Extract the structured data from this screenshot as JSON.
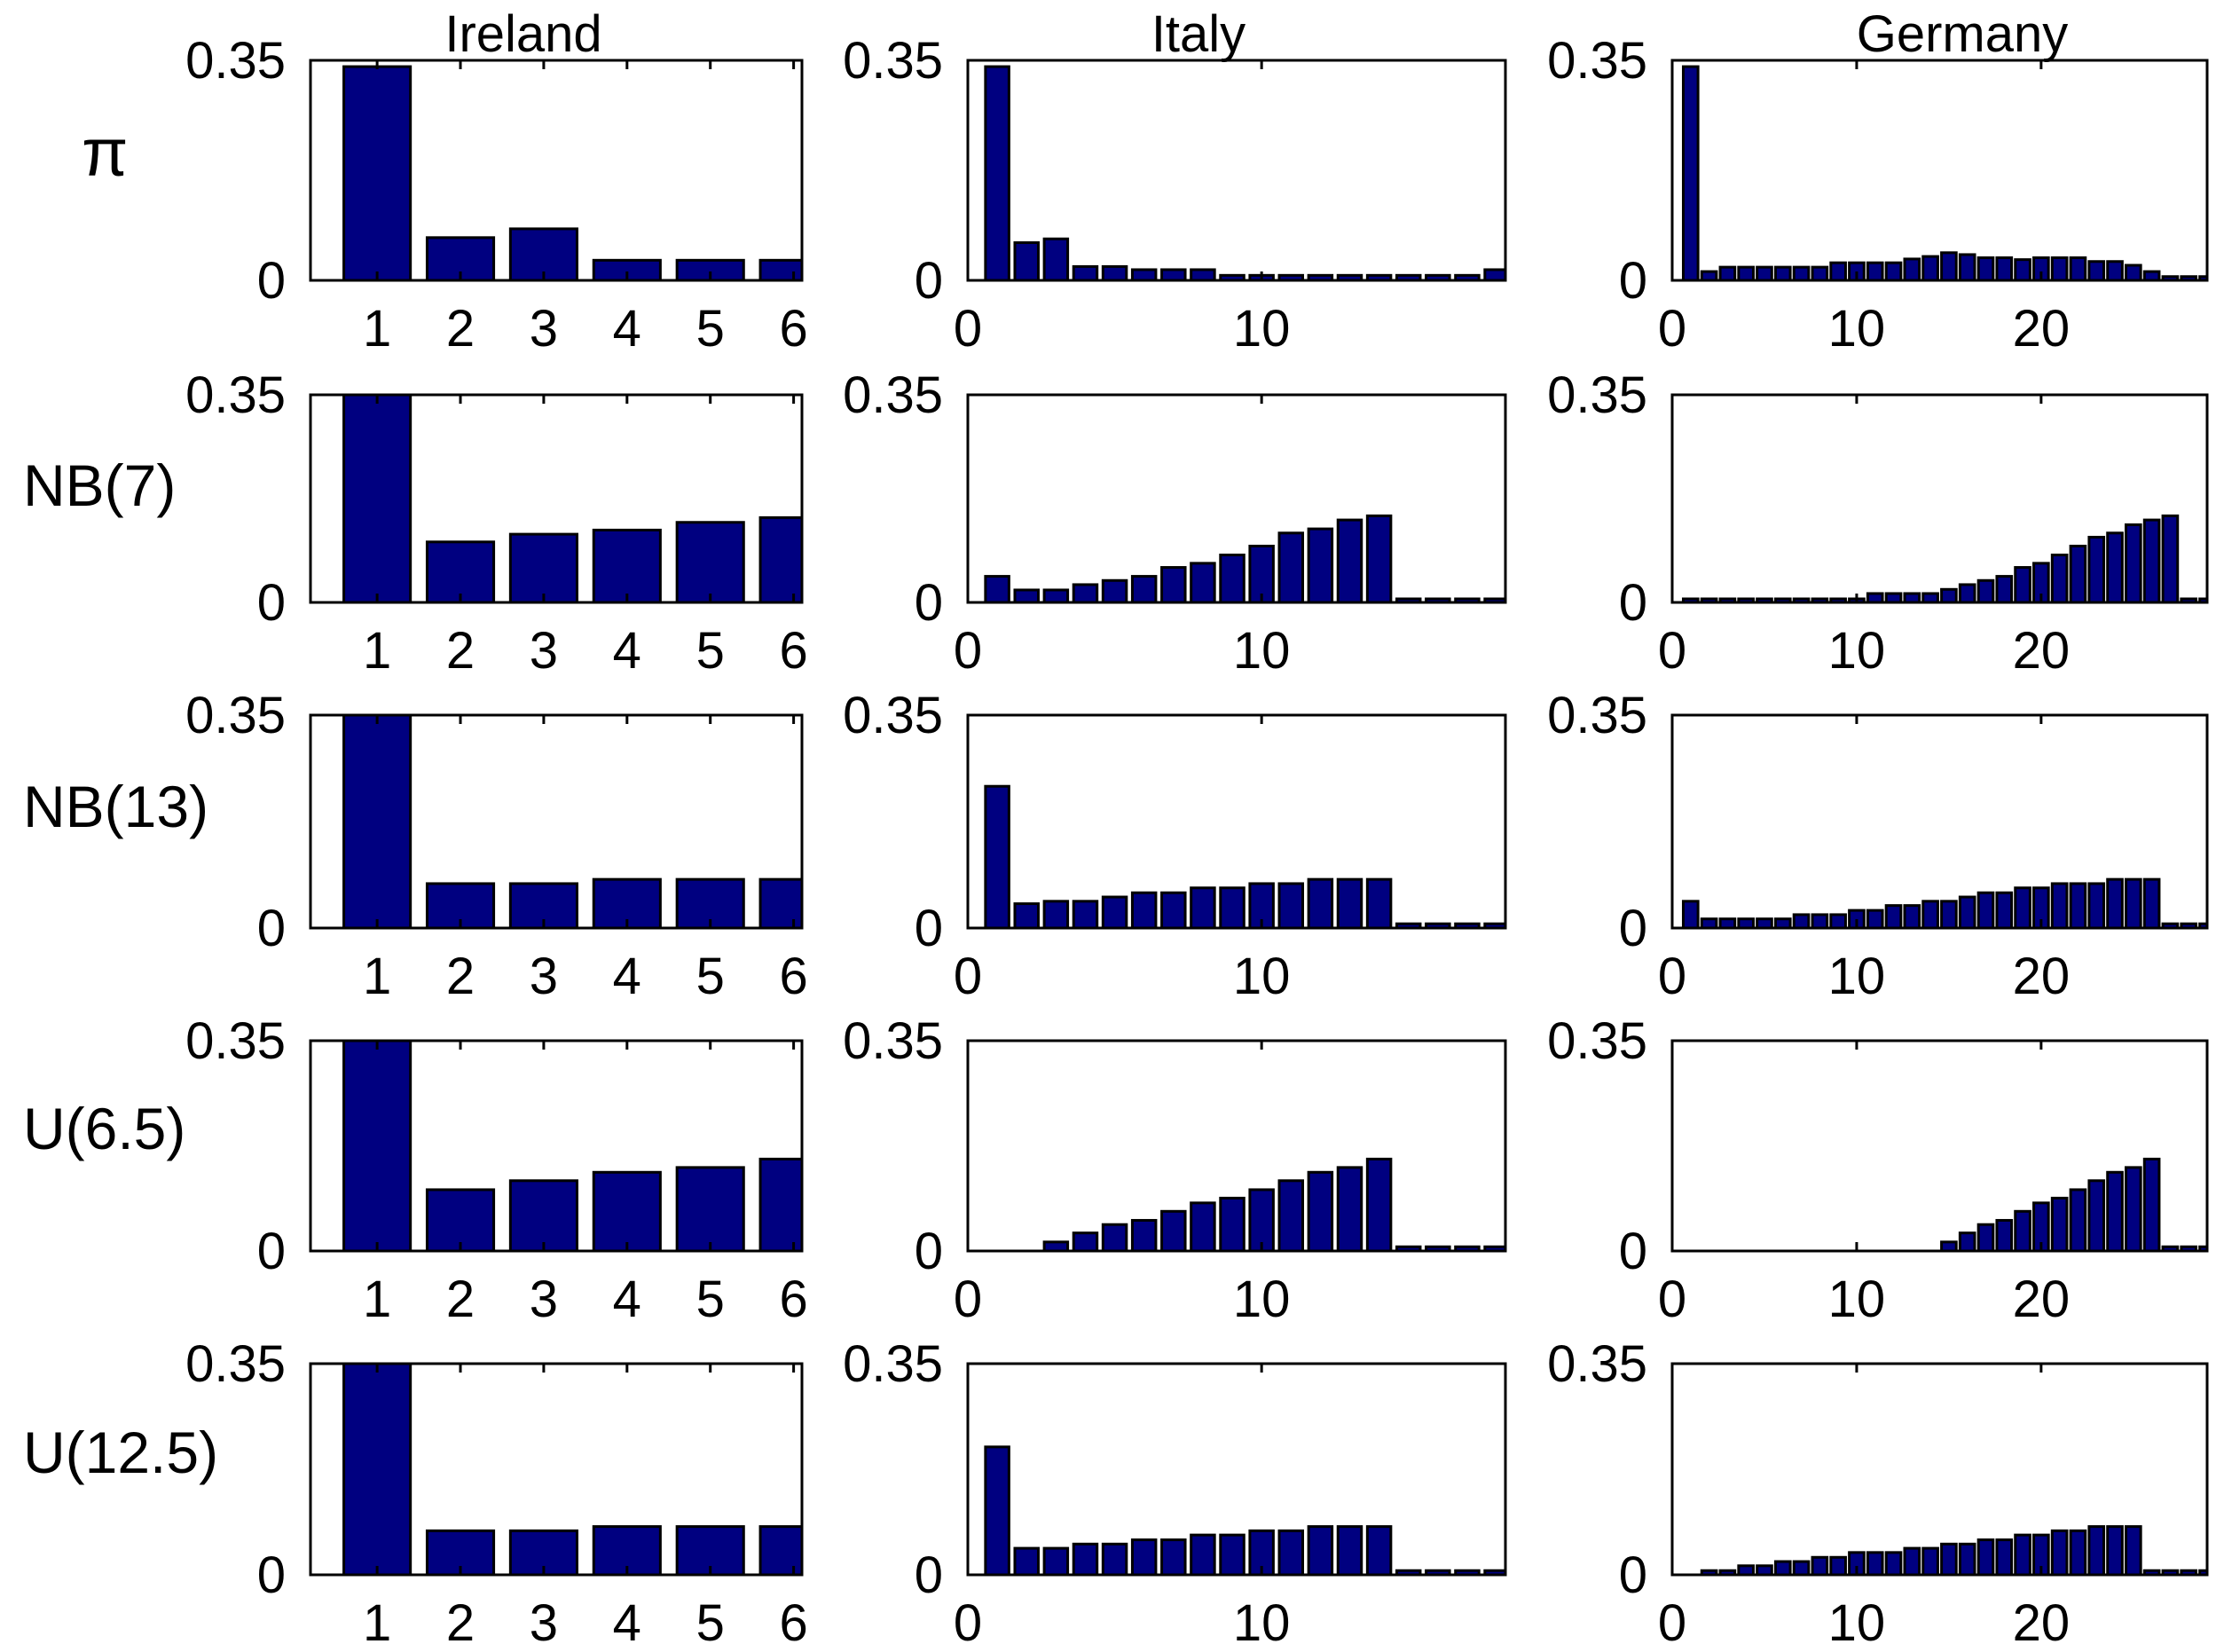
{
  "colors": {
    "bar_fill": "#000080",
    "bar_edge": "#000000",
    "axes": "#000000",
    "background": "#ffffff"
  },
  "column_titles": [
    "Ireland",
    "Italy",
    "Germany"
  ],
  "row_labels": [
    "π",
    "NB(7)",
    "NB(13)",
    "U(6.5)",
    "U(12.5)"
  ],
  "y_tick_labels": [
    "0",
    "0.35"
  ],
  "chart_data": [
    {
      "type": "bar",
      "panel": "pi-ireland",
      "row_label": "π",
      "column_title": "Ireland",
      "x": [
        1,
        2,
        3,
        4,
        5,
        6
      ],
      "values": [
        0.34,
        0.068,
        0.082,
        0.032,
        0.032,
        0.032
      ],
      "xlim": [
        0.2,
        6.1
      ],
      "ylim": [
        0,
        0.35
      ],
      "xticks": [
        1,
        2,
        3,
        4,
        5,
        6
      ],
      "yticks": [
        0,
        0.35
      ]
    },
    {
      "type": "bar",
      "panel": "pi-italy",
      "row_label": "π",
      "column_title": "Italy",
      "x": [
        1,
        2,
        3,
        4,
        5,
        6,
        7,
        8,
        9,
        10,
        11,
        12,
        13,
        14,
        15,
        16,
        17,
        18
      ],
      "values": [
        0.34,
        0.06,
        0.066,
        0.022,
        0.022,
        0.017,
        0.017,
        0.017,
        0.008,
        0.008,
        0.008,
        0.008,
        0.008,
        0.008,
        0.008,
        0.008,
        0.008,
        0.017
      ],
      "xlim": [
        0,
        18.3
      ],
      "ylim": [
        0,
        0.35
      ],
      "xticks": [
        0,
        10
      ],
      "yticks": [
        0,
        0.35
      ]
    },
    {
      "type": "bar",
      "panel": "pi-germany",
      "row_label": "π",
      "column_title": "Germany",
      "x": [
        1,
        2,
        3,
        4,
        5,
        6,
        7,
        8,
        9,
        10,
        11,
        12,
        13,
        14,
        15,
        16,
        17,
        18,
        19,
        20,
        21,
        22,
        23,
        24,
        25,
        26,
        27,
        28,
        29
      ],
      "values": [
        0.34,
        0.014,
        0.021,
        0.021,
        0.021,
        0.021,
        0.021,
        0.021,
        0.028,
        0.028,
        0.028,
        0.028,
        0.034,
        0.038,
        0.044,
        0.041,
        0.036,
        0.036,
        0.033,
        0.036,
        0.036,
        0.036,
        0.03,
        0.03,
        0.024,
        0.014,
        0.006,
        0.006,
        0.006
      ],
      "xlim": [
        0,
        29
      ],
      "ylim": [
        0,
        0.35
      ],
      "xticks": [
        0,
        10,
        20
      ],
      "yticks": [
        0,
        0.35
      ]
    },
    {
      "type": "bar",
      "panel": "nb7-ireland",
      "row_label": "NB(7)",
      "column_title": "Ireland",
      "x": [
        1,
        2,
        3,
        4,
        5,
        6
      ],
      "values": [
        0.35,
        0.102,
        0.115,
        0.122,
        0.135,
        0.143
      ],
      "xlim": [
        0.2,
        6.1
      ],
      "ylim": [
        0,
        0.35
      ],
      "xticks": [
        1,
        2,
        3,
        4,
        5,
        6
      ],
      "yticks": [
        0,
        0.35
      ]
    },
    {
      "type": "bar",
      "panel": "nb7-italy",
      "row_label": "NB(7)",
      "column_title": "Italy",
      "x": [
        1,
        2,
        3,
        4,
        5,
        6,
        7,
        8,
        9,
        10,
        11,
        12,
        13,
        14,
        15,
        16,
        17,
        18
      ],
      "values": [
        0.044,
        0.021,
        0.021,
        0.03,
        0.037,
        0.044,
        0.059,
        0.066,
        0.08,
        0.095,
        0.117,
        0.124,
        0.139,
        0.146,
        0.006,
        0.006,
        0.006,
        0.006
      ],
      "xlim": [
        0,
        18.3
      ],
      "ylim": [
        0,
        0.35
      ],
      "xticks": [
        0,
        10
      ],
      "yticks": [
        0,
        0.35
      ]
    },
    {
      "type": "bar",
      "panel": "nb7-germany",
      "row_label": "NB(7)",
      "column_title": "Germany",
      "x": [
        1,
        2,
        3,
        4,
        5,
        6,
        7,
        8,
        9,
        10,
        11,
        12,
        13,
        14,
        15,
        16,
        17,
        18,
        19,
        20,
        21,
        22,
        23,
        24,
        25,
        26,
        27,
        28,
        29
      ],
      "values": [
        0.006,
        0.006,
        0.006,
        0.006,
        0.006,
        0.006,
        0.006,
        0.006,
        0.006,
        0.006,
        0.015,
        0.015,
        0.015,
        0.015,
        0.022,
        0.03,
        0.037,
        0.044,
        0.059,
        0.066,
        0.08,
        0.095,
        0.11,
        0.117,
        0.131,
        0.139,
        0.146,
        0.006,
        0.006
      ],
      "xlim": [
        0,
        29
      ],
      "ylim": [
        0,
        0.35
      ],
      "xticks": [
        0,
        10,
        20
      ],
      "yticks": [
        0,
        0.35
      ]
    },
    {
      "type": "bar",
      "panel": "nb13-ireland",
      "row_label": "NB(13)",
      "column_title": "Ireland",
      "x": [
        1,
        2,
        3,
        4,
        5,
        6
      ],
      "values": [
        0.35,
        0.073,
        0.073,
        0.08,
        0.08,
        0.08
      ],
      "xlim": [
        0.2,
        6.1
      ],
      "ylim": [
        0,
        0.35
      ],
      "xticks": [
        1,
        2,
        3,
        4,
        5,
        6
      ],
      "yticks": [
        0,
        0.35
      ]
    },
    {
      "type": "bar",
      "panel": "nb13-italy",
      "row_label": "NB(13)",
      "column_title": "Italy",
      "x": [
        1,
        2,
        3,
        4,
        5,
        6,
        7,
        8,
        9,
        10,
        11,
        12,
        13,
        14,
        15,
        16,
        17,
        18
      ],
      "values": [
        0.233,
        0.04,
        0.044,
        0.044,
        0.051,
        0.058,
        0.058,
        0.066,
        0.066,
        0.073,
        0.073,
        0.08,
        0.08,
        0.08,
        0.007,
        0.007,
        0.007,
        0.007
      ],
      "xlim": [
        0,
        18.3
      ],
      "ylim": [
        0,
        0.35
      ],
      "xticks": [
        0,
        10
      ],
      "yticks": [
        0,
        0.35
      ]
    },
    {
      "type": "bar",
      "panel": "nb13-germany",
      "row_label": "NB(13)",
      "column_title": "Germany",
      "x": [
        1,
        2,
        3,
        4,
        5,
        6,
        7,
        8,
        9,
        10,
        11,
        12,
        13,
        14,
        15,
        16,
        17,
        18,
        19,
        20,
        21,
        22,
        23,
        24,
        25,
        26,
        27,
        28,
        29
      ],
      "values": [
        0.044,
        0.015,
        0.015,
        0.015,
        0.015,
        0.015,
        0.022,
        0.022,
        0.022,
        0.029,
        0.029,
        0.037,
        0.037,
        0.044,
        0.044,
        0.051,
        0.058,
        0.058,
        0.066,
        0.066,
        0.073,
        0.073,
        0.073,
        0.08,
        0.08,
        0.08,
        0.007,
        0.007,
        0.007
      ],
      "xlim": [
        0,
        29
      ],
      "ylim": [
        0,
        0.35
      ],
      "xticks": [
        0,
        10,
        20
      ],
      "yticks": [
        0,
        0.35
      ]
    },
    {
      "type": "bar",
      "panel": "u65-ireland",
      "row_label": "U(6.5)",
      "column_title": "Ireland",
      "x": [
        1,
        2,
        3,
        4,
        5,
        6
      ],
      "values": [
        0.35,
        0.102,
        0.117,
        0.131,
        0.139,
        0.153
      ],
      "xlim": [
        0.2,
        6.1
      ],
      "ylim": [
        0,
        0.35
      ],
      "xticks": [
        1,
        2,
        3,
        4,
        5,
        6
      ],
      "yticks": [
        0,
        0.35
      ]
    },
    {
      "type": "bar",
      "panel": "u65-italy",
      "row_label": "U(6.5)",
      "column_title": "Italy",
      "x": [
        1,
        2,
        3,
        4,
        5,
        6,
        7,
        8,
        9,
        10,
        11,
        12,
        13,
        14,
        15,
        16,
        17,
        18
      ],
      "values": [
        0,
        0,
        0.015,
        0.03,
        0.044,
        0.051,
        0.066,
        0.08,
        0.088,
        0.102,
        0.117,
        0.131,
        0.139,
        0.153,
        0.007,
        0.007,
        0.007,
        0.007
      ],
      "xlim": [
        0,
        18.3
      ],
      "ylim": [
        0,
        0.35
      ],
      "xticks": [
        0,
        10
      ],
      "yticks": [
        0,
        0.35
      ]
    },
    {
      "type": "bar",
      "panel": "u65-germany",
      "row_label": "U(6.5)",
      "column_title": "Germany",
      "x": [
        1,
        2,
        3,
        4,
        5,
        6,
        7,
        8,
        9,
        10,
        11,
        12,
        13,
        14,
        15,
        16,
        17,
        18,
        19,
        20,
        21,
        22,
        23,
        24,
        25,
        26,
        27,
        28,
        29
      ],
      "values": [
        0,
        0,
        0,
        0,
        0,
        0,
        0,
        0,
        0,
        0,
        0,
        0,
        0,
        0,
        0.015,
        0.03,
        0.044,
        0.051,
        0.066,
        0.08,
        0.088,
        0.102,
        0.117,
        0.131,
        0.139,
        0.153,
        0.007,
        0.007,
        0.007
      ],
      "xlim": [
        0,
        29
      ],
      "ylim": [
        0,
        0.35
      ],
      "xticks": [
        0,
        10,
        20
      ],
      "yticks": [
        0,
        0.35
      ]
    },
    {
      "type": "bar",
      "panel": "u125-ireland",
      "row_label": "U(12.5)",
      "column_title": "Ireland",
      "x": [
        1,
        2,
        3,
        4,
        5,
        6
      ],
      "values": [
        0.35,
        0.073,
        0.073,
        0.08,
        0.08,
        0.08
      ],
      "xlim": [
        0.2,
        6.1
      ],
      "ylim": [
        0,
        0.35
      ],
      "xticks": [
        1,
        2,
        3,
        4,
        5,
        6
      ],
      "yticks": [
        0,
        0.35
      ]
    },
    {
      "type": "bar",
      "panel": "u125-italy",
      "row_label": "U(12.5)",
      "column_title": "Italy",
      "x": [
        1,
        2,
        3,
        4,
        5,
        6,
        7,
        8,
        9,
        10,
        11,
        12,
        13,
        14,
        15,
        16,
        17,
        18
      ],
      "values": [
        0.212,
        0.044,
        0.044,
        0.051,
        0.051,
        0.058,
        0.058,
        0.066,
        0.066,
        0.073,
        0.073,
        0.08,
        0.08,
        0.08,
        0.007,
        0.007,
        0.007,
        0.007
      ],
      "xlim": [
        0,
        18.3
      ],
      "ylim": [
        0,
        0.35
      ],
      "xticks": [
        0,
        10
      ],
      "yticks": [
        0,
        0.35
      ]
    },
    {
      "type": "bar",
      "panel": "u125-germany",
      "row_label": "U(12.5)",
      "column_title": "Germany",
      "x": [
        1,
        2,
        3,
        4,
        5,
        6,
        7,
        8,
        9,
        10,
        11,
        12,
        13,
        14,
        15,
        16,
        17,
        18,
        19,
        20,
        21,
        22,
        23,
        24,
        25,
        26,
        27,
        28,
        29
      ],
      "values": [
        0,
        0.007,
        0.007,
        0.015,
        0.015,
        0.022,
        0.022,
        0.029,
        0.029,
        0.037,
        0.037,
        0.037,
        0.044,
        0.044,
        0.051,
        0.051,
        0.058,
        0.058,
        0.066,
        0.066,
        0.073,
        0.073,
        0.08,
        0.08,
        0.08,
        0.007,
        0.007,
        0.007,
        0.007
      ],
      "xlim": [
        0,
        29
      ],
      "ylim": [
        0,
        0.35
      ],
      "xticks": [
        0,
        10,
        20
      ],
      "yticks": [
        0,
        0.35
      ]
    }
  ]
}
